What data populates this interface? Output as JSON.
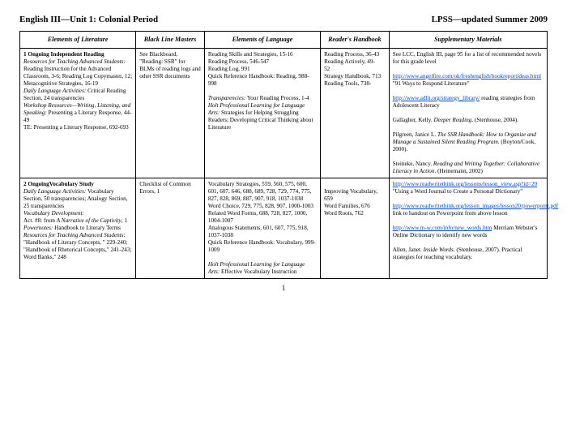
{
  "header": {
    "left": "English III—Unit 1: Colonial Period",
    "right": "LPSS—updated Summer 2009"
  },
  "columns": [
    "Elements of Literature",
    "Black Line Masters",
    "Elements of Language",
    "Reader's Handbook",
    "Supplementary Materials"
  ],
  "rows": [
    {
      "c1_title": "1 Ongoing Independent Reading",
      "c1_a_i": "Resources for Teaching Advanced Students:",
      "c1_a": " Reading Instruction for the Advanced Classroom, 3-6; Reading Log Copymaster, 12; Metacognitive Strategies, 16-19",
      "c1_b_i": "Daily Language Activities:",
      "c1_b": " Critical Reading Section, 24 transparencies",
      "c1_c_i": "Workshop Resources—Writing, Listening, and Speaking:",
      "c1_c": " Presenting a Literary Response, 44-49",
      "c1_d": "TE: Presenting a Literary Response, 692-693",
      "c2": "See Blackboard, \"Reading: SSR\" for BLMs of reading logs and other SSR documents",
      "c3_a": "Reading Skills and Strategies, 15-16",
      "c3_b": "Reading Process, 546-547",
      "c3_c": "Reading Log, 991",
      "c3_d": "Quick Reference Handbook: Reading, 988-998",
      "c3_e_i": "Transparencies:",
      "c3_e": " Your Reading Process, 1-4",
      "c3_f_i": "Holt Professional Learning for Language Arts:",
      "c3_f": " Strategies for Helping Struggling Readers; Developing Critical Thinking about Literature",
      "c4_a": "Reading Process, 36-43",
      "c4_b": "Reading Actively, 49-",
      "c4_c": "   52",
      "c4_d": "Strategy Handbook, 713",
      "c4_e": "Reading Tools, 738-",
      "c5_a": "See LCC, English III, page 95 for a list of recommended novels for this grade level",
      "c5_b_href": "http://www.angelfire.com/ok/freshenglish/bookreportideas.html",
      "c5_b_text": "http://www.angelfire.com/ok/freshenglish/bookreportideas.html",
      "c5_b_after": "   \"91 Ways to Respond Literature\"",
      "c5_c_href": "http://www.adlit.org/strategy_library/",
      "c5_c_text": "http://www.adlit.org/strategy_library/",
      "c5_c_after": " reading strategies from Adolescent Literacy",
      "c5_d": "Gallagher, Kelly. ",
      "c5_d_i": "Deeper Reading",
      "c5_d2": ". (Stenhouse, 2004).",
      "c5_e": "Pilgreen, Janice L. ",
      "c5_e_i": "The SSR Handbook: How to Organize and Manage a Sustained Silent Reading Program",
      "c5_e2": ". (Boyton/Cook, 2000).",
      "c5_f": "Steineke, Nancy. ",
      "c5_f_i": "Reading and Writing Together: Collaborative Literacy in Action",
      "c5_f2": ". (Heinemann, 2002)"
    },
    {
      "c1_title": "2 OngoingVocabulary Study",
      "c1_a_i": "Daily Language Activities:",
      "c1_a": " Vocabulary Section, 50 transparencies; Analogy Section, 25 transparencies",
      "c1_b_i": "Vocabulary Development:",
      "c1_b": "",
      "c1_b2": "   Act. #8: from ",
      "c1_b2_i": "A Narrative of the Captivity",
      "c1_b2_2": ", 1",
      "c1_c_i": "Powernotes:",
      "c1_c": " Handbook to Literary Terms",
      "c1_d_i": "Resources for Teaching Advanced Students:",
      "c1_d": " \"Handbook of Literary Concepts, \" 229-240; \"Handbook of Rhetorical Concepts,\" 241-243; Word Banks,\" 248",
      "c2": "Checklist of Common Errors, 1",
      "c3_a": "Vocabulary Strategies, 559, 560, 575, 600, 601, 607, 646, 688, 689, 728, 729, 774, 775, 827, 828, 869, 887, 907, 918, 1037-1038",
      "c3_b": "Word Choice, 729, 775, 828, 907, 1000-1003",
      "c3_c": "Related Word Forms, 688, 728, 827, 1000, 1004-1007",
      "c3_d": "Analogous Statements, 601, 607, 775, 918, 1037-1038",
      "c3_e": "Quick Reference Handbook: Vocabulary, 999-1009",
      "c3_f_i": "Holt Professional Learning for Language Arts:",
      "c3_f": " Effective Vocabulary Instruction",
      "c4_a": "Improving Vocabulary, 659",
      "c4_b": "Word Families, 676",
      "c4_c": "Word Roots,  762",
      "c5_a_href": "http://www.readwritethink.org/lessons/lesson_view.asp?id=20",
      "c5_a_text": "http://www.readwritethink.org/lessons/lesson_view.asp?id=20",
      "c5_a_after": " \"Using a Word Journal to Create a Personal Dictionary\"",
      "c5_b_href": "http://www.readwritethink.org/lesson_images/lesson20/powerpoint.pdf",
      "c5_b_text": "http://www.readwritethink.org/lesson_images/lesson20/powerpoint.pdf",
      "c5_b_after": " link to handout on Powerpoint from above lesson",
      "c5_c_href": "http://www.m-w.com/info/new_words.htm",
      "c5_c_text": "http://www.m-w.com/info/new_words.htm",
      "c5_c_after": " Merriam Webster's Online Dictionary to identify new words",
      "c5_d": "Allen, Janet. ",
      "c5_d_i": "Inside Words",
      "c5_d2": ". (Stenhouse, 2007). Practical strategies for teaching vocabulary."
    }
  ],
  "pagenum": "1"
}
